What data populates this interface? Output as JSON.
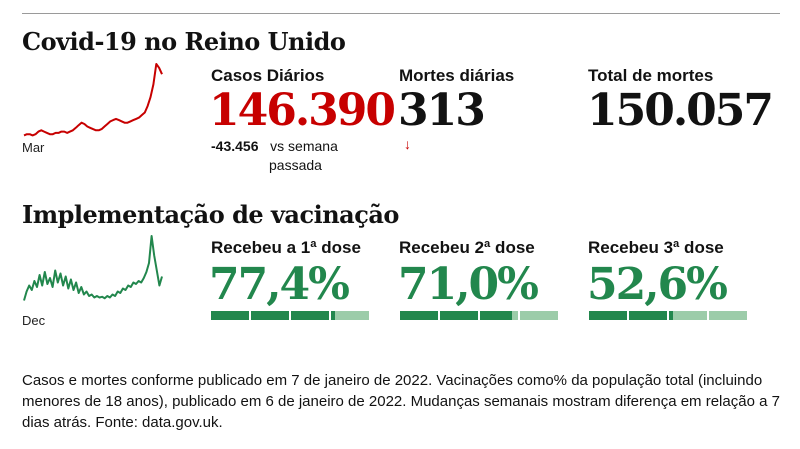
{
  "cases_section": {
    "heading": "Covid-19 no Reino Unido",
    "spark_label": "Mar",
    "daily_cases": {
      "label": "Casos Diários",
      "value": "146.390",
      "change_value": "-43.456",
      "change_text": "vs semana",
      "change_text2": "passada"
    },
    "daily_deaths": {
      "label": "Mortes diárias",
      "value": "313",
      "arrow": "↓"
    },
    "total_deaths": {
      "label": "Total de mortes",
      "value": "150.057"
    }
  },
  "vacc_section": {
    "heading": "Implementação de vacinação",
    "spark_label": "Dec",
    "doses": [
      {
        "label": "Recebeu a 1ª dose",
        "value": "77,4%",
        "fraction": 0.774
      },
      {
        "label": "Recebeu 2ª dose",
        "value": "71,0%",
        "fraction": 0.71
      },
      {
        "label": "Recebeu 3ª dose",
        "value": "52,6%",
        "fraction": 0.526
      }
    ]
  },
  "footnote": "Casos e mortes conforme publicado em 7 de janeiro de 2022. Vacinações como% da população total (incluindo menores de 18 anos), publicado em 6 de janeiro de 2022. Mudanças semanais mostram diferença em relação a 7 dias atrás. Fonte: data.gov.uk.",
  "colors": {
    "cases": "#c70000",
    "vaccination": "#22874d",
    "vaccination_light": "#9ccca9"
  },
  "chart_data": [
    {
      "type": "line",
      "series": [
        {
          "values": [
            2,
            3,
            3,
            2,
            3,
            5,
            6,
            5,
            4,
            3,
            3,
            4,
            4,
            5,
            5,
            4,
            5,
            6,
            8,
            10,
            12,
            11,
            9,
            8,
            7,
            6,
            6,
            7,
            9,
            11,
            13,
            14,
            15,
            14,
            13,
            12,
            12,
            13,
            14,
            15,
            16,
            18,
            20,
            25,
            32,
            42,
            58,
            55,
            50
          ]
        }
      ]
    },
    {
      "type": "line",
      "series": [
        {
          "values": [
            10,
            22,
            30,
            24,
            36,
            28,
            44,
            30,
            48,
            32,
            40,
            28,
            50,
            34,
            46,
            30,
            42,
            26,
            38,
            24,
            34,
            20,
            28,
            18,
            22,
            16,
            18,
            14,
            16,
            14,
            15,
            13,
            16,
            14,
            18,
            16,
            22,
            20,
            26,
            24,
            30,
            28,
            34,
            32,
            36,
            34,
            40,
            48,
            60,
            96,
            70,
            50,
            30,
            42
          ]
        }
      ]
    }
  ]
}
